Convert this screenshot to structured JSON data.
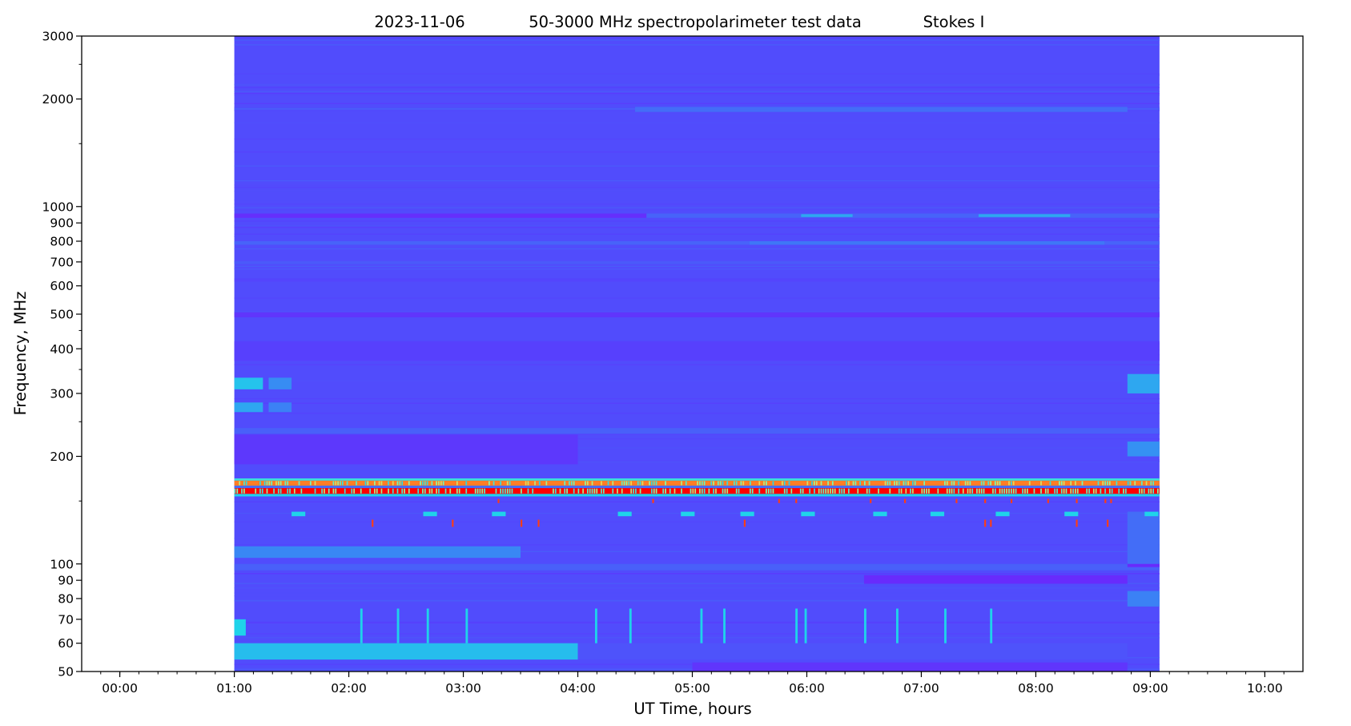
{
  "chart_data": {
    "type": "heatmap",
    "title_parts": [
      "2023-11-06",
      "50-3000 MHz spectropolarimeter test data",
      "Stokes I"
    ],
    "xlabel": "UT Time, hours",
    "ylabel": "Frequency, MHz",
    "x_unit": "hours UT",
    "xlim": [
      -0.333,
      10.333
    ],
    "ylim": [
      50,
      3000
    ],
    "yscale": "log",
    "grid": false,
    "x_ticks": [
      {
        "value": 0,
        "label": "00:00"
      },
      {
        "value": 1,
        "label": "01:00"
      },
      {
        "value": 2,
        "label": "02:00"
      },
      {
        "value": 3,
        "label": "03:00"
      },
      {
        "value": 4,
        "label": "04:00"
      },
      {
        "value": 5,
        "label": "05:00"
      },
      {
        "value": 6,
        "label": "06:00"
      },
      {
        "value": 7,
        "label": "07:00"
      },
      {
        "value": 8,
        "label": "08:00"
      },
      {
        "value": 9,
        "label": "09:00"
      },
      {
        "value": 10,
        "label": "10:00"
      }
    ],
    "x_minor_step_hours": 0.1667,
    "y_ticks": [
      {
        "value": 3000,
        "label": "3000"
      },
      {
        "value": 2000,
        "label": "2000"
      },
      {
        "value": 1000,
        "label": "1000"
      },
      {
        "value": 900,
        "label": "900"
      },
      {
        "value": 800,
        "label": "800"
      },
      {
        "value": 700,
        "label": "700"
      },
      {
        "value": 600,
        "label": "600"
      },
      {
        "value": 500,
        "label": "500"
      },
      {
        "value": 400,
        "label": "400"
      },
      {
        "value": 300,
        "label": "300"
      },
      {
        "value": 200,
        "label": "200"
      },
      {
        "value": 100,
        "label": "100"
      },
      {
        "value": 90,
        "label": "90"
      },
      {
        "value": 80,
        "label": "80"
      },
      {
        "value": 70,
        "label": "70"
      },
      {
        "value": 60,
        "label": "60"
      },
      {
        "value": 50,
        "label": "50"
      }
    ],
    "y_minor_ticks": [
      2500,
      1500,
      450,
      350,
      250,
      150
    ],
    "colormap": [
      "#7022fb",
      "#5641fd",
      "#3e78f6",
      "#1fd3ea",
      "#80ffb0",
      "#ffd040",
      "#ff0000"
    ],
    "data_extent": {
      "t_start": 1.0,
      "t_end": 9.08,
      "f_min": 50,
      "f_max": 3000,
      "background_level": 0.2
    },
    "features": [
      {
        "t": [
          4.5,
          8.8
        ],
        "f": [
          1840,
          1900
        ],
        "level": 0.3
      },
      {
        "t": [
          1.0,
          4.6
        ],
        "f": [
          930,
          956
        ],
        "level": 0.07
      },
      {
        "t": [
          4.6,
          9.08
        ],
        "f": [
          930,
          956
        ],
        "level": 0.27
      },
      {
        "t": [
          5.95,
          6.4
        ],
        "f": [
          935,
          952
        ],
        "level": 0.42
      },
      {
        "t": [
          7.5,
          8.3
        ],
        "f": [
          935,
          952
        ],
        "level": 0.42
      },
      {
        "t": [
          1.0,
          9.08
        ],
        "f": [
          782,
          800
        ],
        "level": 0.27
      },
      {
        "t": [
          5.5,
          8.6
        ],
        "f": [
          782,
          800
        ],
        "level": 0.33
      },
      {
        "t": [
          1.0,
          9.08
        ],
        "f": [
          690,
          705
        ],
        "level": 0.24
      },
      {
        "t": [
          1.0,
          9.08
        ],
        "f": [
          490,
          506
        ],
        "level": 0.1
      },
      {
        "t": [
          1.0,
          9.08
        ],
        "f": [
          370,
          420
        ],
        "level": 0.16
      },
      {
        "t": [
          1.0,
          1.25
        ],
        "f": [
          308,
          332
        ],
        "level": 0.47
      },
      {
        "t": [
          1.3,
          1.5
        ],
        "f": [
          308,
          332
        ],
        "level": 0.37
      },
      {
        "t": [
          1.0,
          1.25
        ],
        "f": [
          266,
          283
        ],
        "level": 0.42
      },
      {
        "t": [
          1.3,
          1.5
        ],
        "f": [
          266,
          283
        ],
        "level": 0.35
      },
      {
        "t": [
          8.8,
          9.08
        ],
        "f": [
          300,
          340
        ],
        "level": 0.42
      },
      {
        "t": [
          8.8,
          9.08
        ],
        "f": [
          200,
          220
        ],
        "level": 0.38
      },
      {
        "t": [
          1.0,
          4.0
        ],
        "f": [
          190,
          230
        ],
        "level": 0.12
      },
      {
        "t": [
          1.0,
          9.08
        ],
        "f": [
          232,
          240
        ],
        "level": 0.26
      },
      {
        "t": [
          1.0,
          9.08
        ],
        "f": [
          171,
          173.5
        ],
        "level": 0.55
      },
      {
        "t": [
          1.0,
          9.08
        ],
        "f": [
          165.5,
          171
        ],
        "level": 0.9
      },
      {
        "t": [
          1.0,
          9.08
        ],
        "f": [
          163,
          165.5
        ],
        "level": 0.3
      },
      {
        "t": [
          1.0,
          9.08
        ],
        "f": [
          157,
          163
        ],
        "level": 1.0
      },
      {
        "t": [
          1.0,
          9.08
        ],
        "f": [
          154.5,
          157
        ],
        "level": 0.5
      },
      {
        "t": [
          1.0,
          3.5
        ],
        "f": [
          104,
          112
        ],
        "level": 0.36
      },
      {
        "t": [
          1.0,
          9.08
        ],
        "f": [
          96,
          100
        ],
        "level": 0.26
      },
      {
        "t": [
          6.5,
          8.8
        ],
        "f": [
          88,
          93
        ],
        "level": 0.05
      },
      {
        "t": [
          8.8,
          9.08
        ],
        "f": [
          98,
          101
        ],
        "level": 0.05
      },
      {
        "t": [
          8.8,
          9.08
        ],
        "f": [
          76,
          84
        ],
        "level": 0.35
      },
      {
        "t": [
          1.0,
          4.0
        ],
        "f": [
          54,
          60
        ],
        "level": 0.46
      },
      {
        "t": [
          4.0,
          8.8
        ],
        "f": [
          54,
          60
        ],
        "level": 0.22
      },
      {
        "t": [
          5.0,
          8.8
        ],
        "f": [
          50,
          53
        ],
        "level": 0.1
      },
      {
        "t": [
          1.0,
          1.1
        ],
        "f": [
          63,
          70
        ],
        "level": 0.5
      },
      {
        "t": [
          8.8,
          9.08
        ],
        "f": [
          100,
          140
        ],
        "level": 0.3
      }
    ],
    "spikes_60_75MHz_times": [
      2.1,
      2.42,
      2.68,
      3.02,
      4.15,
      4.45,
      5.07,
      5.27,
      5.9,
      5.98,
      6.5,
      6.78,
      7.2,
      7.6
    ],
    "blobs_138MHz_times": [
      1.5,
      2.65,
      3.25,
      4.35,
      4.9,
      5.42,
      5.95,
      6.58,
      7.08,
      7.65,
      8.25,
      8.95
    ],
    "red_dots_150MHz_times": [
      3.3,
      4.65,
      5.75,
      5.9,
      6.55,
      6.85,
      7.3,
      7.55,
      7.78,
      8.1,
      8.35,
      8.6,
      8.65
    ],
    "red_dots_130MHz_times": [
      2.2,
      2.9,
      3.5,
      3.65,
      5.45,
      7.55,
      7.6,
      8.35,
      8.62
    ]
  }
}
